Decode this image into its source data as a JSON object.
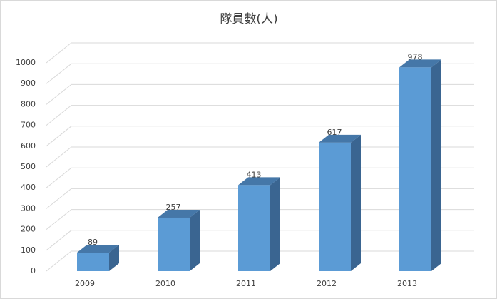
{
  "chart_data": {
    "type": "bar3d",
    "title": "隊員數(人)",
    "categories": [
      "2009",
      "2010",
      "2011",
      "2012",
      "2013"
    ],
    "values": [
      89,
      257,
      413,
      617,
      978
    ],
    "color": "#5b9bd5",
    "ylim": [
      0,
      1000
    ],
    "yticks": [
      0,
      100,
      200,
      300,
      400,
      500,
      600,
      700,
      800,
      900,
      1000
    ],
    "grid": true
  }
}
